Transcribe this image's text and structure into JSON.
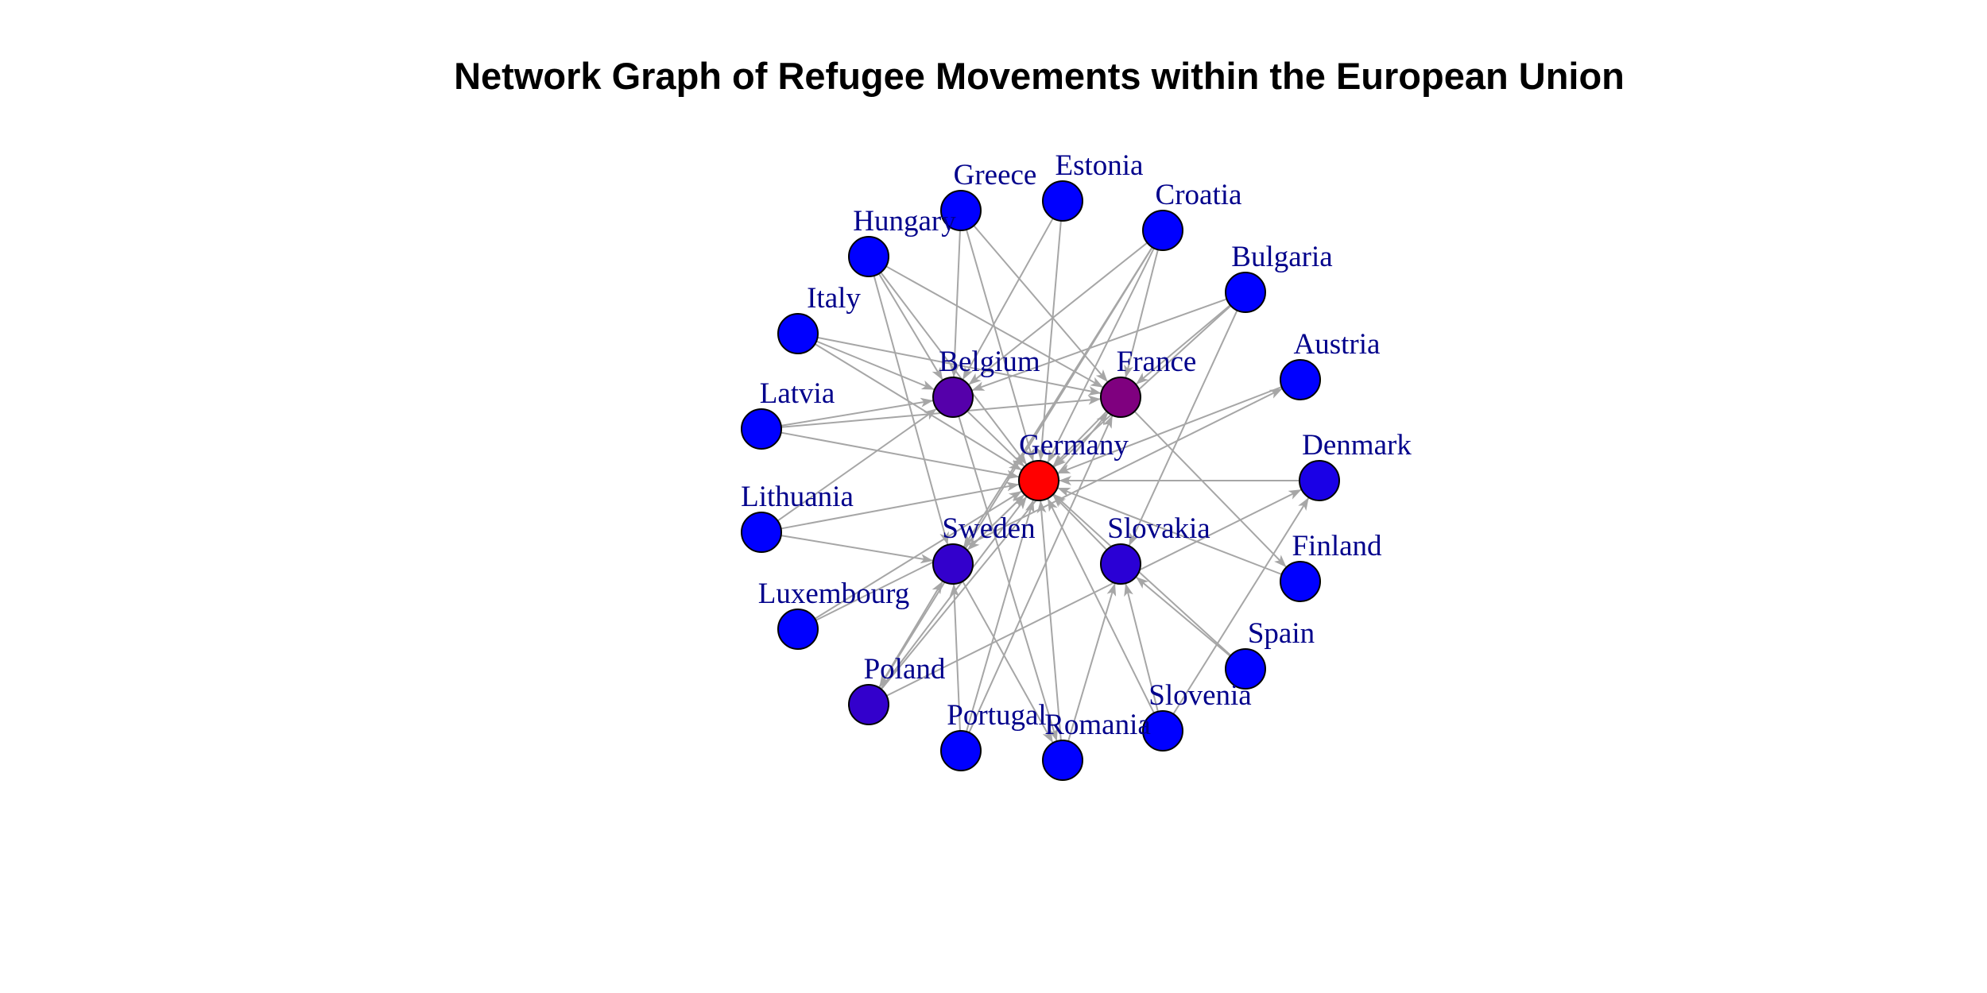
{
  "title": "Network Graph of Refugee Movements within the European Union",
  "style": {
    "edge_color": "#a6a6a6",
    "label_color": "#00008b",
    "node_outline": "#000000",
    "node_colors": {
      "Germany": "#ff0000",
      "France": "#7f007f",
      "Belgium": "#5500aa",
      "Sweden": "#3300cc",
      "Poland": "#3300cc",
      "Slovakia": "#2a00d5",
      "Denmark": "#1a00e6",
      "default": "#0000ff"
    }
  },
  "nodes": [
    {
      "id": "Germany",
      "label": "Germany"
    },
    {
      "id": "France",
      "label": "France"
    },
    {
      "id": "Belgium",
      "label": "Belgium"
    },
    {
      "id": "Sweden",
      "label": "Sweden"
    },
    {
      "id": "Slovakia",
      "label": "Slovakia"
    },
    {
      "id": "Greece",
      "label": "Greece"
    },
    {
      "id": "Estonia",
      "label": "Estonia"
    },
    {
      "id": "Croatia",
      "label": "Croatia"
    },
    {
      "id": "Bulgaria",
      "label": "Bulgaria"
    },
    {
      "id": "Austria",
      "label": "Austria"
    },
    {
      "id": "Denmark",
      "label": "Denmark"
    },
    {
      "id": "Finland",
      "label": "Finland"
    },
    {
      "id": "Spain",
      "label": "Spain"
    },
    {
      "id": "Slovenia",
      "label": "Slovenia"
    },
    {
      "id": "Romania",
      "label": "Romania"
    },
    {
      "id": "Portugal",
      "label": "Portugal"
    },
    {
      "id": "Poland",
      "label": "Poland"
    },
    {
      "id": "Luxembourg",
      "label": "Luxembourg"
    },
    {
      "id": "Lithuania",
      "label": "Lithuania"
    },
    {
      "id": "Latvia",
      "label": "Latvia"
    },
    {
      "id": "Italy",
      "label": "Italy"
    },
    {
      "id": "Hungary",
      "label": "Hungary"
    }
  ],
  "edges": [
    [
      "France",
      "Germany"
    ],
    [
      "Belgium",
      "Germany"
    ],
    [
      "Sweden",
      "Germany"
    ],
    [
      "Slovakia",
      "Germany"
    ],
    [
      "Greece",
      "Germany"
    ],
    [
      "Estonia",
      "Germany"
    ],
    [
      "Croatia",
      "Germany"
    ],
    [
      "Bulgaria",
      "Germany"
    ],
    [
      "Austria",
      "Germany"
    ],
    [
      "Finland",
      "Germany"
    ],
    [
      "Spain",
      "Germany"
    ],
    [
      "Slovenia",
      "Germany"
    ],
    [
      "Romania",
      "Germany"
    ],
    [
      "Portugal",
      "Germany"
    ],
    [
      "Poland",
      "Germany"
    ],
    [
      "Luxembourg",
      "Germany"
    ],
    [
      "Lithuania",
      "Germany"
    ],
    [
      "Latvia",
      "Germany"
    ],
    [
      "Italy",
      "Germany"
    ],
    [
      "Hungary",
      "Germany"
    ],
    [
      "Denmark",
      "Germany"
    ],
    [
      "Germany",
      "Sweden"
    ],
    [
      "Italy",
      "France"
    ],
    [
      "Greece",
      "France"
    ],
    [
      "Croatia",
      "France"
    ],
    [
      "Bulgaria",
      "France"
    ],
    [
      "Hungary",
      "France"
    ],
    [
      "Latvia",
      "France"
    ],
    [
      "Portugal",
      "France"
    ],
    [
      "Poland",
      "France"
    ],
    [
      "Estonia",
      "Belgium"
    ],
    [
      "Croatia",
      "Belgium"
    ],
    [
      "Bulgaria",
      "Belgium"
    ],
    [
      "Latvia",
      "Belgium"
    ],
    [
      "Lithuania",
      "Belgium"
    ],
    [
      "Greece",
      "Belgium"
    ],
    [
      "Lithuania",
      "Sweden"
    ],
    [
      "Hungary",
      "Sweden"
    ],
    [
      "Croatia",
      "Sweden"
    ],
    [
      "Poland",
      "Sweden"
    ],
    [
      "Bulgaria",
      "Slovakia"
    ],
    [
      "Spain",
      "Slovakia"
    ],
    [
      "Slovenia",
      "Slovakia"
    ],
    [
      "Romania",
      "Slovakia"
    ],
    [
      "Luxembourg",
      "Austria"
    ],
    [
      "Poland",
      "Denmark"
    ],
    [
      "Slovenia",
      "Denmark"
    ],
    [
      "France",
      "Finland"
    ],
    [
      "Hungary",
      "Belgium"
    ],
    [
      "Portugal",
      "Sweden"
    ],
    [
      "Italy",
      "Belgium"
    ],
    [
      "Sweden",
      "Romania"
    ],
    [
      "Belgium",
      "Romania"
    ],
    [
      "Croatia",
      "Poland"
    ]
  ]
}
